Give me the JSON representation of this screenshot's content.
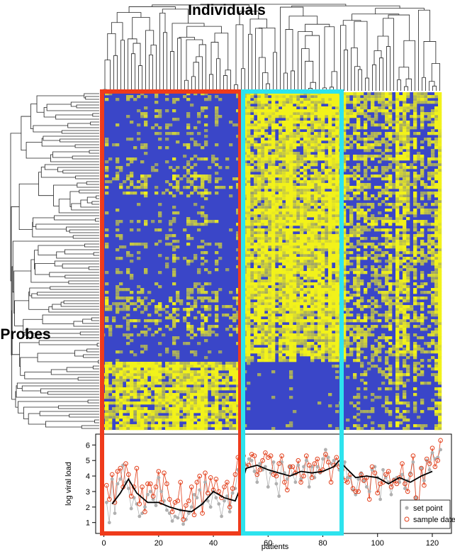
{
  "figure": {
    "top_label": "Individuals",
    "side_label": "Probes"
  },
  "colors": {
    "heat_low": "#3a46c8",
    "heat_high": "#f2f21a",
    "box_left": "#ef3b1b",
    "box_right": "#2de3ee",
    "set_point": "#b0b0b0",
    "sample_date": "#e2401c",
    "trend": "#000000"
  },
  "chart_data": {
    "type": "scatter",
    "xlabel": "patients",
    "ylabel": "log viral load",
    "xlim": [
      -3,
      127
    ],
    "ylim": [
      0.3,
      6.7
    ],
    "x_ticks": [
      0,
      20,
      40,
      60,
      80,
      100,
      120
    ],
    "y_ticks": [
      1,
      2,
      3,
      4,
      5,
      6
    ],
    "legend": {
      "position": "bottom-right",
      "entries": [
        "set point",
        "sample date"
      ]
    },
    "series": [
      {
        "name": "set point",
        "marker": "filled-circle",
        "values": [
          2.3,
          1.0,
          3.8,
          1.6,
          3.5,
          3.8,
          4.7,
          3.6,
          3.2,
          1.9,
          2.6,
          2.2,
          1.4,
          1.6,
          2.0,
          2.8,
          3.0,
          2.5,
          2.1,
          3.9,
          3.0,
          2.4,
          1.8,
          1.6,
          1.1,
          1.4,
          1.3,
          1.8,
          0.9,
          1.2,
          1.6,
          2.0,
          2.8,
          2.6,
          3.1,
          2.2,
          3.6,
          2.4,
          2.0,
          3.0,
          2.6,
          2.2,
          1.4,
          2.4,
          2.7,
          1.7,
          2.9,
          3.2,
          4.4,
          4.6,
          5.3,
          4.7,
          5.1,
          5.0,
          4.3,
          3.6,
          4.8,
          4.4,
          4.6,
          3.3,
          4.2,
          4.9,
          3.5,
          2.7,
          4.9,
          4.2,
          3.8,
          4.6,
          4.1,
          3.6,
          4.7,
          3.8,
          4.6,
          5.0,
          3.3,
          4.6,
          3.9,
          4.6,
          4.2,
          5.1,
          5.7,
          5.2,
          4.8,
          5.0,
          4.7,
          4.4,
          3.4,
          4.9,
          3.9,
          3.9,
          3.1,
          2.8,
          3.8,
          4.2,
          3.7,
          3.3,
          3.0,
          4.4,
          4.6,
          3.9,
          2.5,
          4.4,
          3.9,
          3.6,
          2.8,
          3.8,
          3.9,
          3.6,
          4.1,
          3.2,
          3.7,
          4.2,
          4.9,
          2.6,
          2.1,
          4.5,
          3.7,
          5.0,
          4.4,
          5.5,
          5.1,
          5.2,
          5.7
        ]
      },
      {
        "name": "sample date",
        "marker": "open-circle",
        "values": [
          3.4,
          2.5,
          4.1,
          2.3,
          4.3,
          4.5,
          3.3,
          4.8,
          4.1,
          2.7,
          3.3,
          4.5,
          2.2,
          3.3,
          1.7,
          3.5,
          3.5,
          2.7,
          3.3,
          4.3,
          2.3,
          4.2,
          3.5,
          2.5,
          1.7,
          2.3,
          2.4,
          3.6,
          1.2,
          2.1,
          2.4,
          3.3,
          1.5,
          3.6,
          4.0,
          1.6,
          4.2,
          2.9,
          3.9,
          3.1,
          3.8,
          3.0,
          2.6,
          3.3,
          3.6,
          2.0,
          3.2,
          4.1,
          5.2,
          5.5,
          5.3,
          4.6,
          4.7,
          5.4,
          5.3,
          4.1,
          4.4,
          5.0,
          5.5,
          5.2,
          5.3,
          4.1,
          4.0,
          4.8,
          5.3,
          3.6,
          3.1,
          4.6,
          4.6,
          4.2,
          5.0,
          3.6,
          4.0,
          5.3,
          4.7,
          3.9,
          4.8,
          5.1,
          4.3,
          4.4,
          5.4,
          4.9,
          3.6,
          4.7,
          5.2,
          4.6,
          4.4,
          3.7,
          3.6,
          4.1,
          3.2,
          3.0,
          3.0,
          4.1,
          3.7,
          3.9,
          2.5,
          4.6,
          4.2,
          2.9,
          3.5,
          3.6,
          4.1,
          4.3,
          3.3,
          3.7,
          3.5,
          3.9,
          4.8,
          3.5,
          3.0,
          4.1,
          5.3,
          2.6,
          2.0,
          4.5,
          3.4,
          5.1,
          4.8,
          5.8,
          4.6,
          5.0,
          6.3
        ]
      },
      {
        "name": "",
        "marker": "line",
        "x": [
          3,
          6,
          9,
          12,
          16,
          20,
          24,
          28,
          32,
          36,
          40,
          44,
          48,
          50,
          52,
          56,
          60,
          64,
          68,
          72,
          76,
          80,
          84,
          86,
          88,
          92,
          96,
          100,
          104,
          108,
          112,
          116,
          120
        ],
        "values": [
          2.2,
          2.9,
          3.8,
          2.9,
          2.3,
          2.3,
          2.0,
          1.8,
          1.7,
          2.2,
          3.0,
          2.6,
          2.4,
          3.3,
          4.5,
          4.7,
          4.4,
          4.2,
          4.0,
          4.3,
          4.2,
          4.3,
          4.6,
          5.0,
          4.6,
          3.9,
          4.0,
          3.9,
          3.5,
          3.9,
          3.6,
          4.0,
          4.3
        ]
      }
    ]
  }
}
